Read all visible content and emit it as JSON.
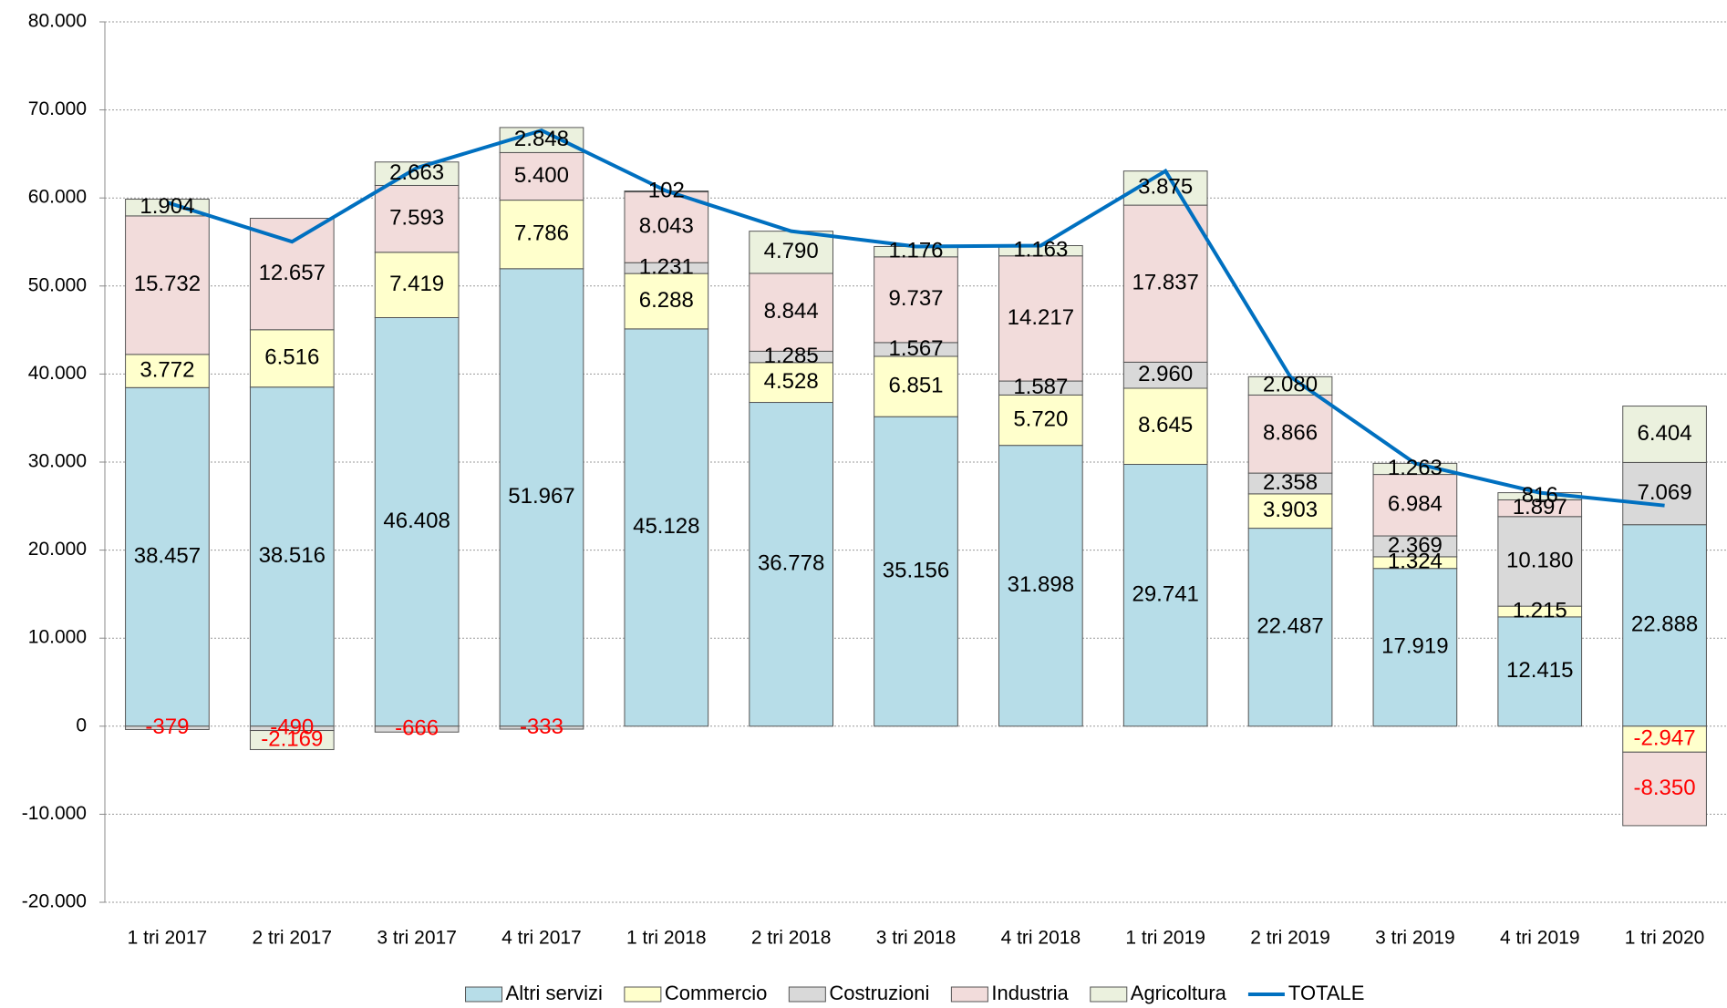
{
  "chart_data": {
    "type": "stacked_bar_line",
    "categories": [
      "1 tri 2017",
      "2 tri 2017",
      "3 tri 2017",
      "4 tri 2017",
      "1 tri 2018",
      "2 tri 2018",
      "3 tri 2018",
      "4 tri 2018",
      "1 tri 2019",
      "2 tri 2019",
      "3 tri 2019",
      "4 tri 2019",
      "1 tri 2020"
    ],
    "series": [
      {
        "name": "Altri servizi",
        "color": "#b7dde8",
        "type": "bar",
        "values": [
          38457,
          38516,
          46408,
          51967,
          45128,
          36778,
          35156,
          31898,
          29741,
          22487,
          17919,
          12415,
          22888
        ],
        "value_labels": [
          "38.457",
          "38.516",
          "46.408",
          "51.967",
          "45.128",
          "36.778",
          "35.156",
          "31.898",
          "29.741",
          "22.487",
          "17.919",
          "12.415",
          "22.888"
        ]
      },
      {
        "name": "Commercio",
        "color": "#ffffcc",
        "type": "bar",
        "values": [
          3772,
          6516,
          7419,
          7786,
          6288,
          4528,
          6851,
          5720,
          8645,
          3903,
          1324,
          1215,
          -2947
        ],
        "value_labels": [
          "3.772",
          "6.516",
          "7.419",
          "7.786",
          "6.288",
          "4.528",
          "6.851",
          "5.720",
          "8.645",
          "3.903",
          "1.324",
          "1.215",
          "-2.947"
        ]
      },
      {
        "name": "Costruzioni",
        "color": "#d9d9d9",
        "type": "bar",
        "values": [
          -379,
          -490,
          -666,
          -333,
          1231,
          1285,
          1567,
          1587,
          2960,
          2358,
          2369,
          10180,
          7069
        ],
        "value_labels": [
          "-379",
          "-490",
          "-666",
          "-333",
          "1.231",
          "1.285",
          "1.567",
          "1.587",
          "2.960",
          "2.358",
          "2.369",
          "10.180",
          "7.069"
        ]
      },
      {
        "name": "Industria",
        "color": "#f2dcdb",
        "type": "bar",
        "values": [
          15732,
          12657,
          7593,
          5400,
          8043,
          8844,
          9737,
          14217,
          17837,
          8866,
          6984,
          1897,
          -8350
        ],
        "value_labels": [
          "15.732",
          "12.657",
          "7.593",
          "5.400",
          "8.043",
          "8.844",
          "9.737",
          "14.217",
          "17.837",
          "8.866",
          "6.984",
          "1.897",
          "-8.350"
        ]
      },
      {
        "name": "Agricoltura",
        "color": "#ebf1de",
        "type": "bar",
        "values": [
          1904,
          -2169,
          2663,
          2848,
          102,
          4790,
          1176,
          1163,
          3875,
          2080,
          1263,
          816,
          6404
        ],
        "value_labels": [
          "1.904",
          "-2.169",
          "2.663",
          "2.848",
          "102",
          "4.790",
          "1.176",
          "1.163",
          "3.875",
          "2.080",
          "1.263",
          "816",
          "6.404"
        ]
      },
      {
        "name": "TOTALE",
        "color": "#0070c0",
        "type": "line",
        "values": [
          59486,
          55030,
          63417,
          67668,
          60792,
          56225,
          54487,
          54585,
          63058,
          39694,
          29859,
          26523,
          25064
        ]
      }
    ],
    "negative_label_color": "#ff0000",
    "ylim": [
      -20000,
      80000
    ],
    "yticks": [
      {
        "value": -20000,
        "label": "-20.000"
      },
      {
        "value": -10000,
        "label": "-10.000"
      },
      0,
      {
        "value": 10000,
        "label": "10.000"
      },
      {
        "value": 20000,
        "label": "20.000"
      },
      {
        "value": 30000,
        "label": "30.000"
      },
      {
        "value": 40000,
        "label": "40.000"
      },
      {
        "value": 50000,
        "label": "50.000"
      },
      {
        "value": 60000,
        "label": "60.000"
      },
      {
        "value": 70000,
        "label": "70.000"
      },
      {
        "value": 80000,
        "label": "80.000"
      }
    ],
    "grid": true,
    "legend": "bottom"
  }
}
